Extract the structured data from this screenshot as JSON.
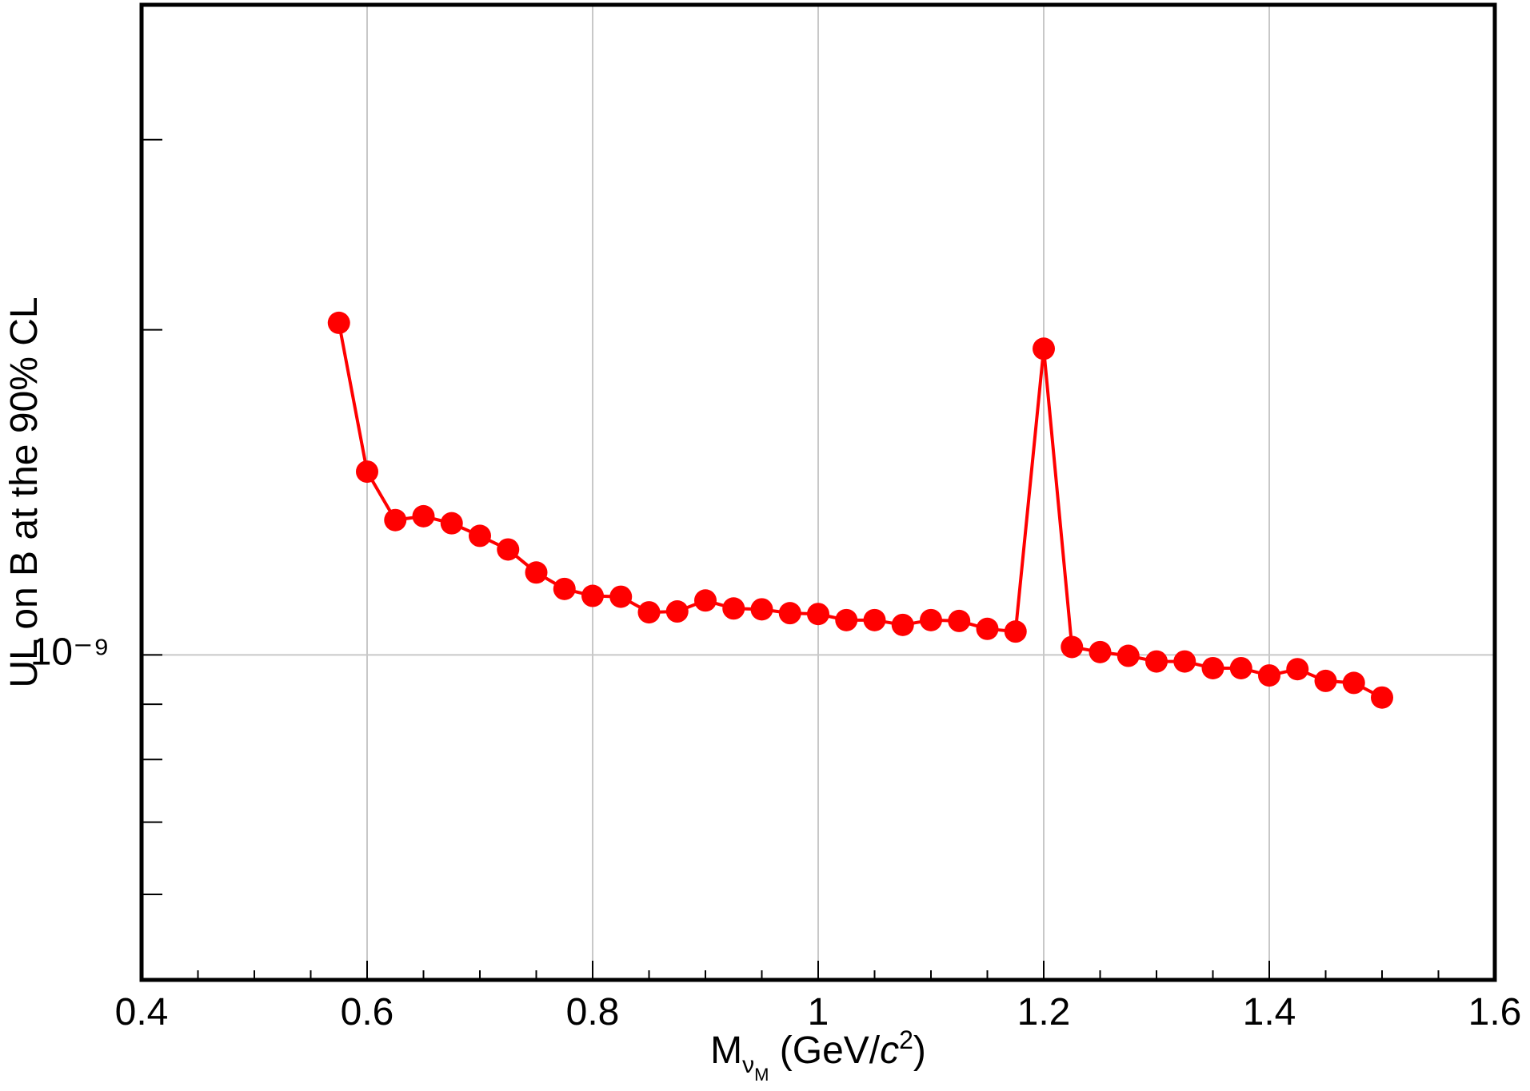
{
  "chart_data": {
    "type": "line",
    "ylabel": "UL on B at the 90% CL",
    "xlabel": {
      "symbol": "M",
      "sub": "ν",
      "subsub": "M",
      "unit_open": " (GeV/",
      "unit_c": "c",
      "unit_power": "2",
      "unit_close": ")"
    },
    "x": [
      0.575,
      0.6,
      0.625,
      0.65,
      0.675,
      0.7,
      0.725,
      0.75,
      0.775,
      0.8,
      0.825,
      0.85,
      0.875,
      0.9,
      0.925,
      0.95,
      0.975,
      1.0,
      1.025,
      1.05,
      1.075,
      1.1,
      1.125,
      1.15,
      1.175,
      1.2,
      1.225,
      1.25,
      1.275,
      1.3,
      1.325,
      1.35,
      1.375,
      1.4,
      1.425,
      1.45,
      1.475,
      1.5
    ],
    "series": [
      {
        "color": "#ff0000",
        "values": [
          2.03e-09,
          1.478e-09,
          1.333e-09,
          1.344e-09,
          1.324e-09,
          1.289e-09,
          1.252e-09,
          1.192e-09,
          1.151e-09,
          1.134e-09,
          1.132e-09,
          1.095e-09,
          1.097e-09,
          1.123e-09,
          1.104e-09,
          1.102e-09,
          1.093e-09,
          1.091e-09,
          1.077e-09,
          1.077e-09,
          1.066e-09,
          1.077e-09,
          1.075e-09,
          1.057e-09,
          1.051e-09,
          1.921e-09,
          1.017e-09,
          1.006e-09,
          9.98e-10,
          9.86e-10,
          9.86e-10,
          9.72e-10,
          9.72e-10,
          9.57e-10,
          9.7e-10,
          9.46e-10,
          9.42e-10,
          9.13e-10
        ]
      }
    ],
    "xlim": [
      0.4,
      1.6
    ],
    "xticks": [
      0.4,
      0.6,
      0.8,
      1,
      1.2,
      1.4,
      1.6
    ],
    "xminor_ticks": [
      0.45,
      0.5,
      0.55,
      0.65,
      0.7,
      0.75,
      0.85,
      0.9,
      0.95,
      1.05,
      1.1,
      1.15,
      1.25,
      1.3,
      1.35,
      1.45,
      1.5,
      1.55
    ],
    "ylim": [
      5e-10,
      4e-09
    ],
    "yscale": "log",
    "yticks": [
      {
        "value": 1e-09,
        "label": "10⁻⁹"
      }
    ],
    "yminor_ticks": [
      6e-10,
      7e-10,
      8e-10,
      9e-10,
      2e-09,
      3e-09
    ],
    "grid": true
  }
}
